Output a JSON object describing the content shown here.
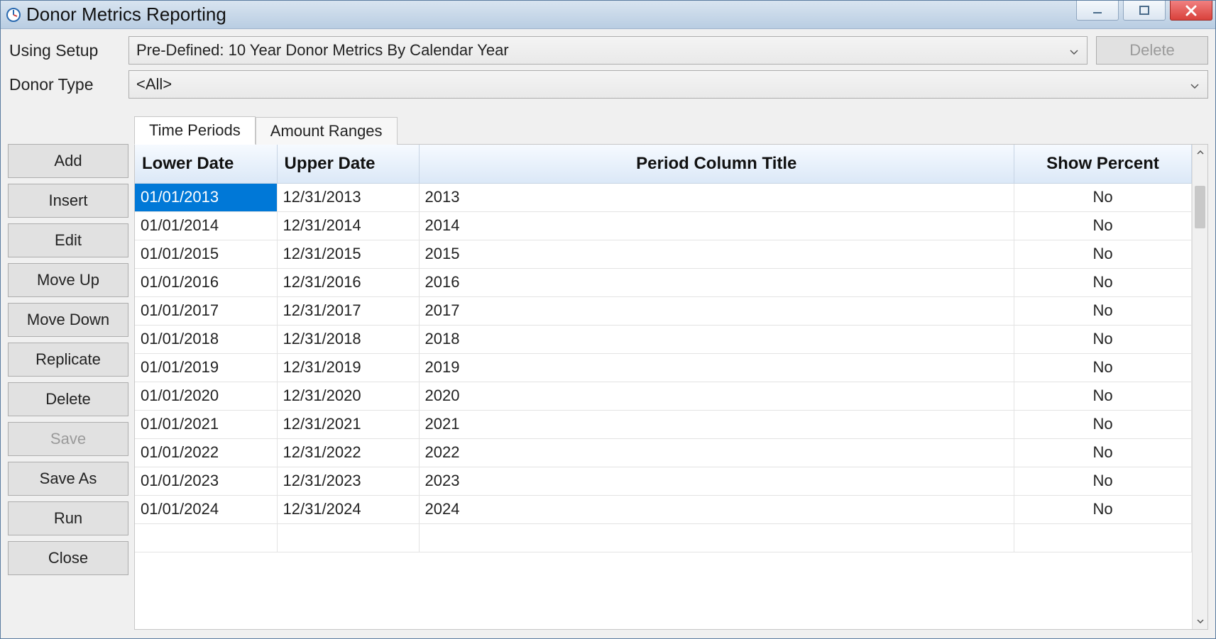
{
  "window": {
    "title": "Donor Metrics Reporting"
  },
  "form": {
    "using_setup_label": "Using Setup",
    "using_setup_value": "Pre-Defined: 10 Year Donor Metrics By Calendar Year",
    "donor_type_label": "Donor Type",
    "donor_type_value": "<All>",
    "delete_button": "Delete"
  },
  "side_buttons": {
    "add": "Add",
    "insert": "Insert",
    "edit": "Edit",
    "move_up": "Move Up",
    "move_down": "Move Down",
    "replicate": "Replicate",
    "delete": "Delete",
    "save": "Save",
    "save_as": "Save As",
    "run": "Run",
    "close": "Close"
  },
  "tabs": {
    "time_periods": "Time Periods",
    "amount_ranges": "Amount Ranges"
  },
  "grid": {
    "columns": {
      "lower_date": "Lower Date",
      "upper_date": "Upper Date",
      "title": "Period Column Title",
      "show_percent": "Show Percent"
    },
    "rows": [
      {
        "lower": "01/01/2013",
        "upper": "12/31/2013",
        "title": "2013",
        "percent": "No"
      },
      {
        "lower": "01/01/2014",
        "upper": "12/31/2014",
        "title": "2014",
        "percent": "No"
      },
      {
        "lower": "01/01/2015",
        "upper": "12/31/2015",
        "title": "2015",
        "percent": "No"
      },
      {
        "lower": "01/01/2016",
        "upper": "12/31/2016",
        "title": "2016",
        "percent": "No"
      },
      {
        "lower": "01/01/2017",
        "upper": "12/31/2017",
        "title": "2017",
        "percent": "No"
      },
      {
        "lower": "01/01/2018",
        "upper": "12/31/2018",
        "title": "2018",
        "percent": "No"
      },
      {
        "lower": "01/01/2019",
        "upper": "12/31/2019",
        "title": "2019",
        "percent": "No"
      },
      {
        "lower": "01/01/2020",
        "upper": "12/31/2020",
        "title": "2020",
        "percent": "No"
      },
      {
        "lower": "01/01/2021",
        "upper": "12/31/2021",
        "title": "2021",
        "percent": "No"
      },
      {
        "lower": "01/01/2022",
        "upper": "12/31/2022",
        "title": "2022",
        "percent": "No"
      },
      {
        "lower": "01/01/2023",
        "upper": "12/31/2023",
        "title": "2023",
        "percent": "No"
      },
      {
        "lower": "01/01/2024",
        "upper": "12/31/2024",
        "title": "2024",
        "percent": "No"
      }
    ],
    "selected_row": 0,
    "selected_col": "lower"
  },
  "colors": {
    "titlebar_top": "#d8e4f0",
    "titlebar_bottom": "#b9cde2",
    "header_top": "#f6faff",
    "header_bottom": "#dbe8f7",
    "selection": "#0078d7",
    "close_top": "#f08080",
    "close_bottom": "#d9413b",
    "button_bg": "#e1e1e1",
    "border_gray": "#adadad",
    "grid_border": "#e3e3e3"
  }
}
